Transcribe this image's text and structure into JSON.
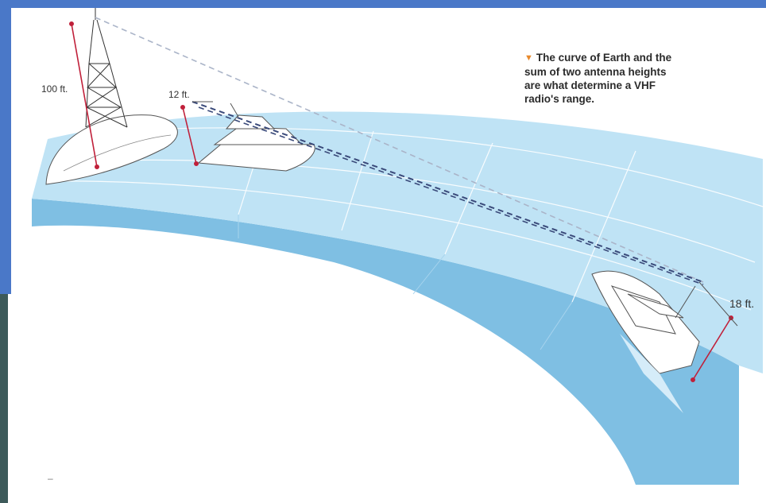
{
  "caption": {
    "marker_icon": "orange-triangle-icon",
    "marker_color": "#e8892c",
    "lines": [
      "The curve of Earth and the",
      "sum of two antenna heights",
      "are what determine a VHF",
      "radio's range."
    ]
  },
  "labels": {
    "tower_height": "100 ft.",
    "near_boat_antenna": "12 ft.",
    "far_boat_antenna": "18 ft.",
    "corner_mark": "–"
  },
  "colors": {
    "frame_blue": "#4a78c8",
    "sea_surface": "#bfe3f5",
    "sea_side": "#7fbfe3",
    "sight_line": "#3a4a7a",
    "measure_line": "#c0203a"
  }
}
